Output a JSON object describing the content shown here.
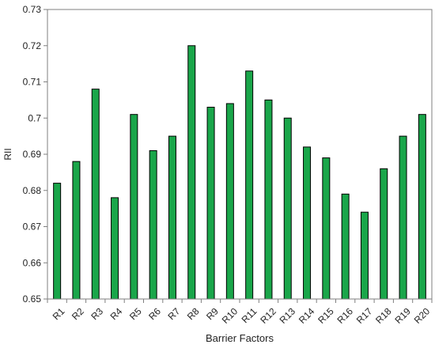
{
  "chart_data": {
    "type": "bar",
    "title": "",
    "xlabel": "Barrier Factors",
    "ylabel": "RII",
    "ylim": [
      0.65,
      0.73
    ],
    "yticks": [
      0.65,
      0.66,
      0.67,
      0.68,
      0.69,
      0.7,
      0.71,
      0.72,
      0.73
    ],
    "ytick_labels": [
      "0.65",
      "0.66",
      "0.67",
      "0.68",
      "0.69",
      "0.7",
      "0.71",
      "0.72",
      "0.73"
    ],
    "categories": [
      "R1",
      "R2",
      "R3",
      "R4",
      "R5",
      "R6",
      "R7",
      "R8",
      "R9",
      "R10",
      "R11",
      "R12",
      "R13",
      "R14",
      "R15",
      "R16",
      "R17",
      "R18",
      "R19",
      "R20"
    ],
    "values": [
      0.682,
      0.688,
      0.708,
      0.678,
      0.701,
      0.691,
      0.695,
      0.72,
      0.703,
      0.704,
      0.713,
      0.705,
      0.7,
      0.692,
      0.689,
      0.679,
      0.674,
      0.686,
      0.695,
      0.701
    ],
    "grid": false,
    "legend": "none",
    "colors": {
      "bar_fill": "#1aa64a",
      "bar_stroke": "#000000",
      "axis": "#7f7f7f"
    }
  }
}
